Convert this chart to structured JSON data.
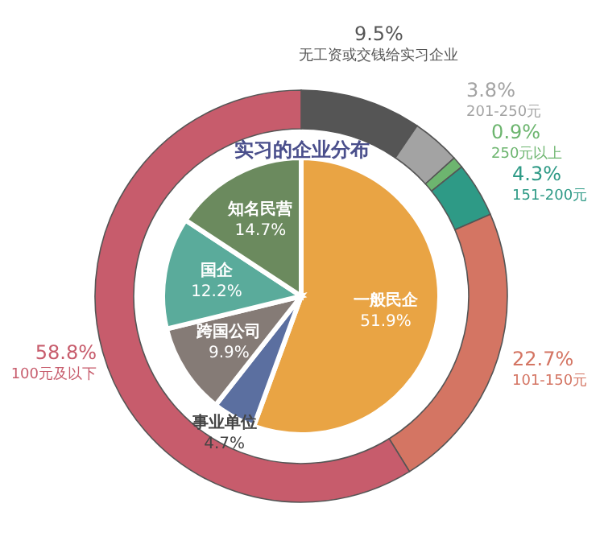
{
  "chart_data": [
    {
      "type": "donut",
      "categories": [
        "无工资或交钱给实习企业",
        "201-250元",
        "250元以上",
        "151-200元",
        "101-150元",
        "100元及以下"
      ],
      "values": [
        9.5,
        3.8,
        0.9,
        4.3,
        22.7,
        58.8
      ],
      "colors": [
        "#555555",
        "#a3a3a3",
        "#6db56f",
        "#2e9a86",
        "#d47563",
        "#c75c6c"
      ],
      "value_labels": [
        "9.5%",
        "3.8%",
        "0.9%",
        "4.3%",
        "22.7%",
        "58.8%"
      ]
    },
    {
      "type": "pie",
      "title": "实习的企业分布",
      "categories": [
        "一般民企",
        "事业单位",
        "跨国公司",
        "国企",
        "知名民营"
      ],
      "values": [
        51.9,
        4.7,
        9.9,
        12.2,
        14.7
      ],
      "colors": [
        "#e9a444",
        "#5b6fa0",
        "#857b76",
        "#5aab9b",
        "#6b8a5e"
      ],
      "value_labels": [
        "51.9%",
        "4.7%",
        "9.9%",
        "12.2%",
        "14.7%"
      ]
    }
  ]
}
